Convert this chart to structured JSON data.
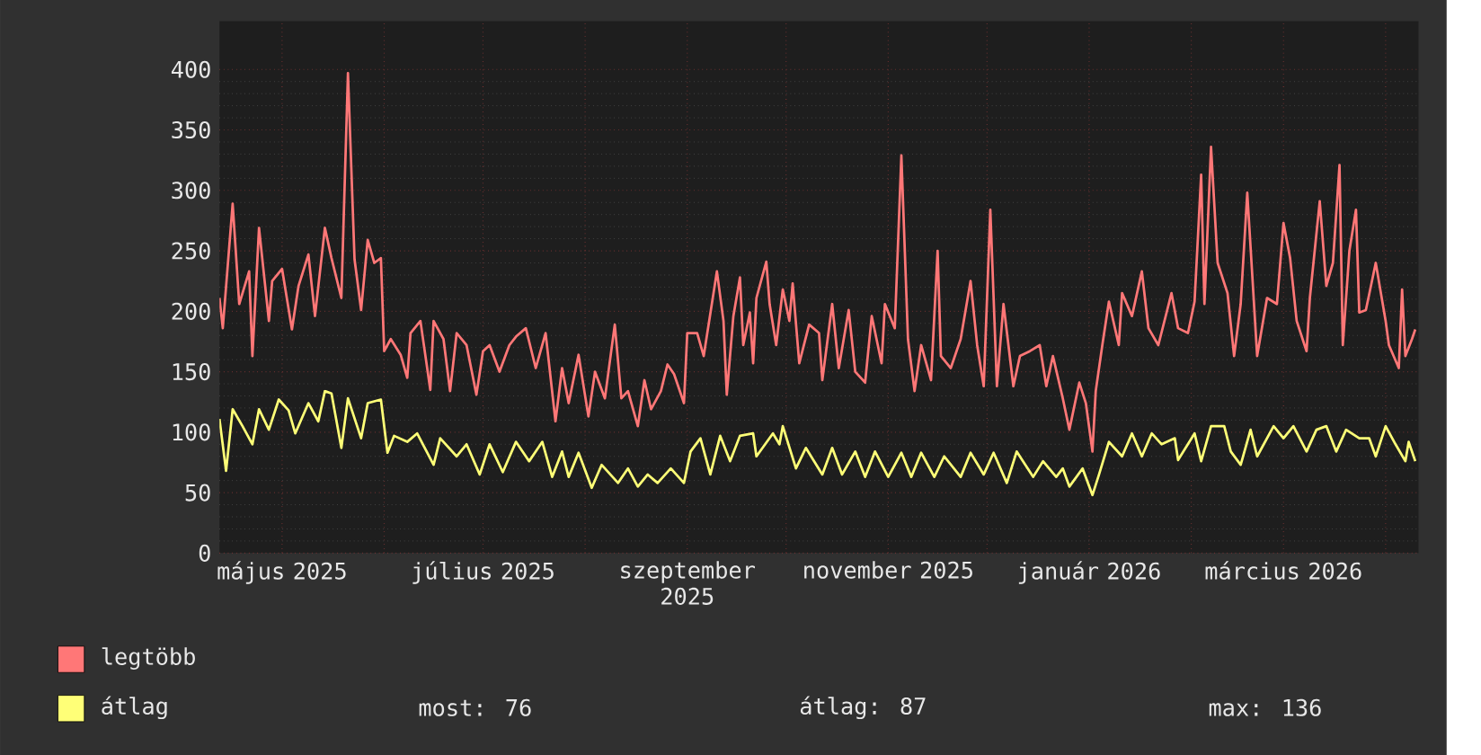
{
  "chart_data": {
    "type": "line",
    "xlim": [
      "2025-04-12",
      "2026-04-11"
    ],
    "xticks": [
      {
        "value": "2025-05-01",
        "label": "május 2025"
      },
      {
        "value": "2025-06-01",
        "label": null
      },
      {
        "value": "2025-07-01",
        "label": "július 2025"
      },
      {
        "value": "2025-08-01",
        "label": null
      },
      {
        "value": "2025-09-01",
        "label": "szeptember 2025"
      },
      {
        "value": "2025-10-01",
        "label": null
      },
      {
        "value": "2025-11-01",
        "label": "november 2025"
      },
      {
        "value": "2025-12-01",
        "label": null
      },
      {
        "value": "2026-01-01",
        "label": "január 2026"
      },
      {
        "value": "2026-02-01",
        "label": null
      },
      {
        "value": "2026-03-01",
        "label": "március 2026"
      },
      {
        "value": "2026-04-01",
        "label": null
      }
    ],
    "ylim": [
      0,
      440
    ],
    "yticks": [
      0,
      50,
      100,
      150,
      200,
      250,
      300,
      350,
      400
    ],
    "grid": true,
    "legend": "bottom",
    "annotations": [
      "most: 76",
      "átlag: 87",
      "max: 136"
    ],
    "series": [
      {
        "name": "legtöbb",
        "color": "#ff7777",
        "x": [
          "2025-04-12",
          "2025-04-13",
          "2025-04-16",
          "2025-04-18",
          "2025-04-21",
          "2025-04-22",
          "2025-04-24",
          "2025-04-27",
          "2025-04-28",
          "2025-05-01",
          "2025-05-04",
          "2025-05-06",
          "2025-05-09",
          "2025-05-11",
          "2025-05-14",
          "2025-05-16",
          "2025-05-19",
          "2025-05-21",
          "2025-05-23",
          "2025-05-25",
          "2025-05-27",
          "2025-05-29",
          "2025-05-31",
          "2025-06-01",
          "2025-06-03",
          "2025-06-06",
          "2025-06-08",
          "2025-06-09",
          "2025-06-12",
          "2025-06-15",
          "2025-06-16",
          "2025-06-19",
          "2025-06-21",
          "2025-06-23",
          "2025-06-26",
          "2025-06-29",
          "2025-07-01",
          "2025-07-03",
          "2025-07-06",
          "2025-07-09",
          "2025-07-11",
          "2025-07-14",
          "2025-07-17",
          "2025-07-20",
          "2025-07-23",
          "2025-07-25",
          "2025-07-27",
          "2025-07-30",
          "2025-08-02",
          "2025-08-04",
          "2025-08-07",
          "2025-08-10",
          "2025-08-12",
          "2025-08-14",
          "2025-08-17",
          "2025-08-19",
          "2025-08-21",
          "2025-08-24",
          "2025-08-26",
          "2025-08-28",
          "2025-08-31",
          "2025-09-01",
          "2025-09-04",
          "2025-09-06",
          "2025-09-10",
          "2025-09-12",
          "2025-09-13",
          "2025-09-15",
          "2025-09-17",
          "2025-09-18",
          "2025-09-20",
          "2025-09-21",
          "2025-09-22",
          "2025-09-25",
          "2025-09-26",
          "2025-09-28",
          "2025-09-30",
          "2025-10-02",
          "2025-10-03",
          "2025-10-05",
          "2025-10-08",
          "2025-10-11",
          "2025-10-12",
          "2025-10-15",
          "2025-10-17",
          "2025-10-20",
          "2025-10-22",
          "2025-10-25",
          "2025-10-27",
          "2025-10-30",
          "2025-10-31",
          "2025-11-03",
          "2025-11-05",
          "2025-11-07",
          "2025-11-09",
          "2025-11-11",
          "2025-11-14",
          "2025-11-16",
          "2025-11-17",
          "2025-11-20",
          "2025-11-23",
          "2025-11-26",
          "2025-11-28",
          "2025-11-30",
          "2025-12-02",
          "2025-12-04",
          "2025-12-06",
          "2025-12-09",
          "2025-12-11",
          "2025-12-14",
          "2025-12-17",
          "2025-12-19",
          "2025-12-21",
          "2025-12-24",
          "2025-12-26",
          "2025-12-29",
          "2025-12-31",
          "2026-01-02",
          "2026-01-03",
          "2026-01-05",
          "2026-01-07",
          "2026-01-10",
          "2026-01-11",
          "2026-01-14",
          "2026-01-17",
          "2026-01-19",
          "2026-01-22",
          "2026-01-26",
          "2026-01-28",
          "2026-01-31",
          "2026-02-02",
          "2026-02-04",
          "2026-02-05",
          "2026-02-07",
          "2026-02-09",
          "2026-02-12",
          "2026-02-14",
          "2026-02-16",
          "2026-02-18",
          "2026-02-21",
          "2026-02-24",
          "2026-02-27",
          "2026-03-01",
          "2026-03-03",
          "2026-03-05",
          "2026-03-08",
          "2026-03-09",
          "2026-03-12",
          "2026-03-14",
          "2026-03-16",
          "2026-03-18",
          "2026-03-19",
          "2026-03-21",
          "2026-03-23",
          "2026-03-24",
          "2026-03-26",
          "2026-03-29",
          "2026-04-01",
          "2026-04-02",
          "2026-04-05",
          "2026-04-06",
          "2026-04-07",
          "2026-04-09",
          "2026-04-10"
        ],
        "values": [
          211,
          186,
          289,
          206,
          233,
          163,
          269,
          192,
          225,
          235,
          185,
          221,
          247,
          196,
          269,
          244,
          211,
          397,
          243,
          201,
          259,
          240,
          244,
          167,
          177,
          164,
          145,
          182,
          192,
          135,
          192,
          177,
          134,
          182,
          172,
          131,
          167,
          172,
          150,
          172,
          179,
          186,
          153,
          182,
          109,
          153,
          124,
          164,
          113,
          150,
          128,
          189,
          128,
          134,
          105,
          143,
          119,
          134,
          156,
          148,
          124,
          182,
          182,
          163,
          233,
          192,
          131,
          196,
          228,
          172,
          199,
          157,
          211,
          241,
          206,
          172,
          218,
          192,
          223,
          157,
          189,
          182,
          143,
          206,
          153,
          201,
          150,
          141,
          196,
          157,
          206,
          186,
          329,
          177,
          134,
          172,
          143,
          250,
          163,
          153,
          177,
          225,
          172,
          138,
          284,
          138,
          206,
          138,
          163,
          167,
          172,
          138,
          163,
          128,
          102,
          141,
          124,
          84,
          134,
          172,
          208,
          172,
          215,
          196,
          233,
          186,
          172,
          215,
          186,
          182,
          208,
          313,
          206,
          336,
          240,
          215,
          163,
          206,
          298,
          163,
          211,
          206,
          273,
          244,
          192,
          167,
          211,
          291,
          221,
          240,
          321,
          172,
          250,
          284,
          199,
          201,
          240,
          192,
          172,
          153,
          218,
          163,
          177,
          185
        ]
      },
      {
        "name": "átlag",
        "color": "#ffff77",
        "x": [
          "2025-04-12",
          "2025-04-14",
          "2025-04-16",
          "2025-04-19",
          "2025-04-22",
          "2025-04-24",
          "2025-04-27",
          "2025-04-30",
          "2025-05-03",
          "2025-05-05",
          "2025-05-09",
          "2025-05-12",
          "2025-05-14",
          "2025-05-16",
          "2025-05-19",
          "2025-05-21",
          "2025-05-25",
          "2025-05-27",
          "2025-05-31",
          "2025-06-02",
          "2025-06-04",
          "2025-06-08",
          "2025-06-11",
          "2025-06-16",
          "2025-06-18",
          "2025-06-23",
          "2025-06-26",
          "2025-06-30",
          "2025-07-03",
          "2025-07-07",
          "2025-07-11",
          "2025-07-15",
          "2025-07-19",
          "2025-07-22",
          "2025-07-25",
          "2025-07-27",
          "2025-07-30",
          "2025-08-03",
          "2025-08-06",
          "2025-08-11",
          "2025-08-14",
          "2025-08-17",
          "2025-08-20",
          "2025-08-23",
          "2025-08-27",
          "2025-08-31",
          "2025-09-02",
          "2025-09-05",
          "2025-09-08",
          "2025-09-11",
          "2025-09-14",
          "2025-09-17",
          "2025-09-21",
          "2025-09-22",
          "2025-09-27",
          "2025-09-29",
          "2025-09-30",
          "2025-10-04",
          "2025-10-07",
          "2025-10-12",
          "2025-10-15",
          "2025-10-18",
          "2025-10-22",
          "2025-10-25",
          "2025-10-28",
          "2025-11-01",
          "2025-11-05",
          "2025-11-08",
          "2025-11-11",
          "2025-11-15",
          "2025-11-18",
          "2025-11-23",
          "2025-11-26",
          "2025-11-30",
          "2025-12-03",
          "2025-12-07",
          "2025-12-10",
          "2025-12-15",
          "2025-12-18",
          "2025-12-22",
          "2025-12-24",
          "2025-12-26",
          "2025-12-30",
          "2026-01-02",
          "2026-01-04",
          "2026-01-07",
          "2026-01-11",
          "2026-01-14",
          "2026-01-17",
          "2026-01-20",
          "2026-01-23",
          "2026-01-27",
          "2026-01-28",
          "2026-02-02",
          "2026-02-04",
          "2026-02-07",
          "2026-02-11",
          "2026-02-13",
          "2026-02-16",
          "2026-02-19",
          "2026-02-21",
          "2026-02-26",
          "2026-03-01",
          "2026-03-04",
          "2026-03-08",
          "2026-03-11",
          "2026-03-14",
          "2026-03-17",
          "2026-03-20",
          "2026-03-24",
          "2026-03-27",
          "2026-03-29",
          "2026-04-01",
          "2026-04-04",
          "2026-04-07",
          "2026-04-08",
          "2026-04-10"
        ],
        "values": [
          111,
          68,
          119,
          105,
          90,
          119,
          102,
          127,
          118,
          99,
          124,
          109,
          134,
          132,
          87,
          128,
          95,
          124,
          127,
          83,
          97,
          92,
          99,
          73,
          95,
          80,
          90,
          65,
          90,
          67,
          92,
          76,
          92,
          63,
          84,
          63,
          83,
          54,
          73,
          58,
          70,
          55,
          65,
          58,
          70,
          58,
          84,
          95,
          65,
          97,
          76,
          97,
          99,
          80,
          99,
          90,
          105,
          70,
          87,
          65,
          87,
          65,
          84,
          63,
          84,
          63,
          83,
          63,
          83,
          63,
          80,
          63,
          83,
          65,
          83,
          58,
          84,
          63,
          76,
          63,
          70,
          55,
          70,
          48,
          65,
          92,
          80,
          99,
          80,
          99,
          90,
          95,
          77,
          99,
          76,
          105,
          105,
          84,
          73,
          102,
          80,
          105,
          95,
          105,
          84,
          102,
          105,
          84,
          102,
          95,
          95,
          80,
          105,
          90,
          76,
          92,
          76
        ]
      }
    ]
  }
}
